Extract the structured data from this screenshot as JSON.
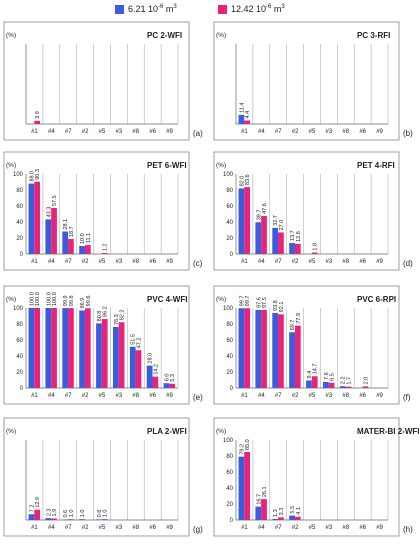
{
  "legend": {
    "series": [
      {
        "name_pre": "6.21 10",
        "exp": "-6",
        "name_post": " m",
        "unit_exp": "3",
        "color": "#3b5ddd"
      },
      {
        "name_pre": "12.42 10",
        "exp": "-6",
        "name_post": " m",
        "unit_exp": "3",
        "color": "#e8247a"
      }
    ]
  },
  "chart_data": [
    {
      "type": "bar",
      "title": "PC 2-WFI",
      "panel_label": "(a)",
      "ylabel": "(%)",
      "categories": [
        "#1",
        "#4",
        "#7",
        "#2",
        "#5",
        "#3",
        "#8",
        "#6",
        "#9"
      ],
      "ylim": [
        0,
        100
      ],
      "yticks": [],
      "series": [
        {
          "values": [
            null,
            null,
            null,
            null,
            null,
            null,
            null,
            null,
            null
          ]
        },
        {
          "values": [
            3.9,
            null,
            null,
            null,
            null,
            null,
            null,
            null,
            null
          ]
        }
      ],
      "labels": [
        [
          null,
          null,
          null,
          null,
          null,
          null,
          null,
          null,
          null
        ],
        [
          "3.9",
          null,
          null,
          null,
          null,
          null,
          null,
          null,
          null
        ]
      ]
    },
    {
      "type": "bar",
      "title": "PC 3-RFI",
      "panel_label": "(b)",
      "ylabel": "(%)",
      "categories": [
        "#1",
        "#4",
        "#7",
        "#2",
        "#5",
        "#3",
        "#8",
        "#6",
        "#9"
      ],
      "ylim": [
        0,
        100
      ],
      "yticks": [],
      "series": [
        {
          "values": [
            11.4,
            null,
            null,
            null,
            null,
            null,
            null,
            null,
            null
          ]
        },
        {
          "values": [
            4.4,
            null,
            null,
            null,
            null,
            null,
            null,
            null,
            null
          ]
        }
      ],
      "labels": [
        [
          "11.4",
          null,
          null,
          null,
          null,
          null,
          null,
          null,
          null
        ],
        [
          "4.4",
          null,
          null,
          null,
          null,
          null,
          null,
          null,
          null
        ]
      ]
    },
    {
      "type": "bar",
      "title": "PET 6-WFI",
      "panel_label": "(c)",
      "ylabel": "(%)",
      "categories": [
        "#1",
        "#4",
        "#7",
        "#2",
        "#5",
        "#3",
        "#8",
        "#6",
        "#9"
      ],
      "ylim": [
        0,
        100
      ],
      "yticks": [
        "0",
        "20",
        "40",
        "60",
        "80",
        "100"
      ],
      "series": [
        {
          "values": [
            88.0,
            43.3,
            28.1,
            10.0,
            null,
            null,
            null,
            null,
            null
          ]
        },
        {
          "values": [
            90.3,
            57.5,
            18.7,
            11.1,
            1.2,
            null,
            null,
            null,
            null
          ]
        }
      ],
      "labels": [
        [
          "88.0",
          "43.3",
          "28.1",
          "10.0",
          null,
          null,
          null,
          null,
          null
        ],
        [
          "90.3",
          "57.5",
          "18.7",
          "11.1",
          "1.2",
          null,
          null,
          null,
          null
        ]
      ]
    },
    {
      "type": "bar",
      "title": "PET 4-RFI",
      "panel_label": "(d)",
      "ylabel": "(%)",
      "categories": [
        "#1",
        "#4",
        "#7",
        "#2",
        "#5",
        "#3",
        "#8",
        "#6",
        "#9"
      ],
      "ylim": [
        0,
        100
      ],
      "yticks": [
        "0",
        "20",
        "40",
        "60",
        "80",
        "100"
      ],
      "series": [
        {
          "values": [
            82.0,
            39.7,
            32.7,
            13.7,
            null,
            null,
            null,
            null,
            null
          ]
        },
        {
          "values": [
            83.6,
            47.6,
            27.0,
            12.6,
            1.8,
            null,
            null,
            null,
            null
          ]
        }
      ],
      "labels": [
        [
          "82.0",
          "39.7",
          "32.7",
          "13.7",
          null,
          null,
          null,
          null,
          null
        ],
        [
          "83.6",
          "47.6",
          "27.0",
          "12.6",
          "1.8",
          null,
          null,
          null,
          null
        ]
      ]
    },
    {
      "type": "bar",
      "title": "PVC 4-WFI",
      "panel_label": "(e)",
      "ylabel": "(%)",
      "categories": [
        "#1",
        "#4",
        "#7",
        "#2",
        "#5",
        "#3",
        "#8",
        "#6",
        "#9"
      ],
      "ylim": [
        0,
        100
      ],
      "yticks": [
        "0",
        "20",
        "40",
        "60",
        "80",
        "100"
      ],
      "series": [
        {
          "values": [
            100.0,
            100.0,
            99.9,
            96.9,
            80.8,
            76.3,
            51.5,
            28.0,
            6.0
          ]
        },
        {
          "values": [
            100.0,
            100.0,
            99.8,
            99.6,
            86.2,
            82.2,
            47.2,
            14.2,
            5.3
          ]
        }
      ],
      "labels": [
        [
          "100.0",
          "100.0",
          "99.9",
          "96.9",
          "80.8",
          "76.3",
          "51.5",
          "28.0",
          "6.0"
        ],
        [
          "100.0",
          "100.0",
          "99.8",
          "99.6",
          "86.2",
          "82.2",
          "47.2",
          "14.2",
          "5.3"
        ]
      ]
    },
    {
      "type": "bar",
      "title": "PVC 6-RPI",
      "panel_label": "(f)",
      "ylabel": "(%)",
      "categories": [
        "#1",
        "#4",
        "#7",
        "#2",
        "#5",
        "#3",
        "#8",
        "#6",
        "#9"
      ],
      "ylim": [
        0,
        100
      ],
      "yticks": [
        "0",
        "20",
        "40",
        "60",
        "80",
        "100"
      ],
      "series": [
        {
          "values": [
            99.7,
            97.6,
            93.8,
            69.7,
            9.4,
            7.6,
            2.2,
            null,
            null
          ]
        },
        {
          "values": [
            99.7,
            97.5,
            92.1,
            77.9,
            14.7,
            6.5,
            1.7,
            2.0,
            null
          ]
        }
      ],
      "labels": [
        [
          "99.7",
          "97.6",
          "93.8",
          "69.7",
          "9.4",
          "7.6",
          "2.2",
          null,
          null
        ],
        [
          "99.7",
          "97.5",
          "92.1",
          "77.9",
          "14.7",
          "6.5",
          "1.7",
          "2.0",
          null
        ]
      ]
    },
    {
      "type": "bar",
      "title": "PLA 2-WFI",
      "panel_label": "(g)",
      "ylabel": "(%)",
      "categories": [
        "#1",
        "#4",
        "#7",
        "#2",
        "#5",
        "#3",
        "#8",
        "#6",
        "#9"
      ],
      "ylim": [
        0,
        100
      ],
      "yticks": [],
      "series": [
        {
          "values": [
            7.2,
            2.3,
            0.6,
            1.0,
            0.8,
            null,
            null,
            null,
            null
          ]
        },
        {
          "values": [
            12.9,
            1.9,
            1.0,
            null,
            1.0,
            null,
            null,
            null,
            null
          ]
        }
      ],
      "labels": [
        [
          "7.2",
          "2.3",
          "0.6",
          "1.0",
          "0.8",
          null,
          null,
          null,
          null
        ],
        [
          "12.9",
          "1.9",
          "1.0",
          null,
          "1.0",
          null,
          null,
          null,
          null
        ]
      ]
    },
    {
      "type": "bar",
      "title": "MATER-BI 2-WFI",
      "panel_label": "(h)",
      "ylabel": "(%)",
      "categories": [
        "#1",
        "#4",
        "#7",
        "#2",
        "#5",
        "#3",
        "#8",
        "#6",
        "#9"
      ],
      "ylim": [
        0,
        100
      ],
      "yticks": [
        "0",
        "20",
        "40",
        "60",
        "80",
        "100"
      ],
      "series": [
        {
          "values": [
            79.2,
            16.7,
            1.3,
            5.5,
            null,
            null,
            null,
            null,
            null
          ]
        },
        {
          "values": [
            85.0,
            26.1,
            3.3,
            4.1,
            null,
            null,
            null,
            null,
            null
          ]
        }
      ],
      "labels": [
        [
          "79.2",
          "16.7",
          "1.3",
          "5.5",
          null,
          null,
          null,
          null,
          null
        ],
        [
          "85.0",
          "26.1",
          "3.3",
          "4.1",
          null,
          null,
          null,
          null,
          null
        ]
      ]
    }
  ]
}
